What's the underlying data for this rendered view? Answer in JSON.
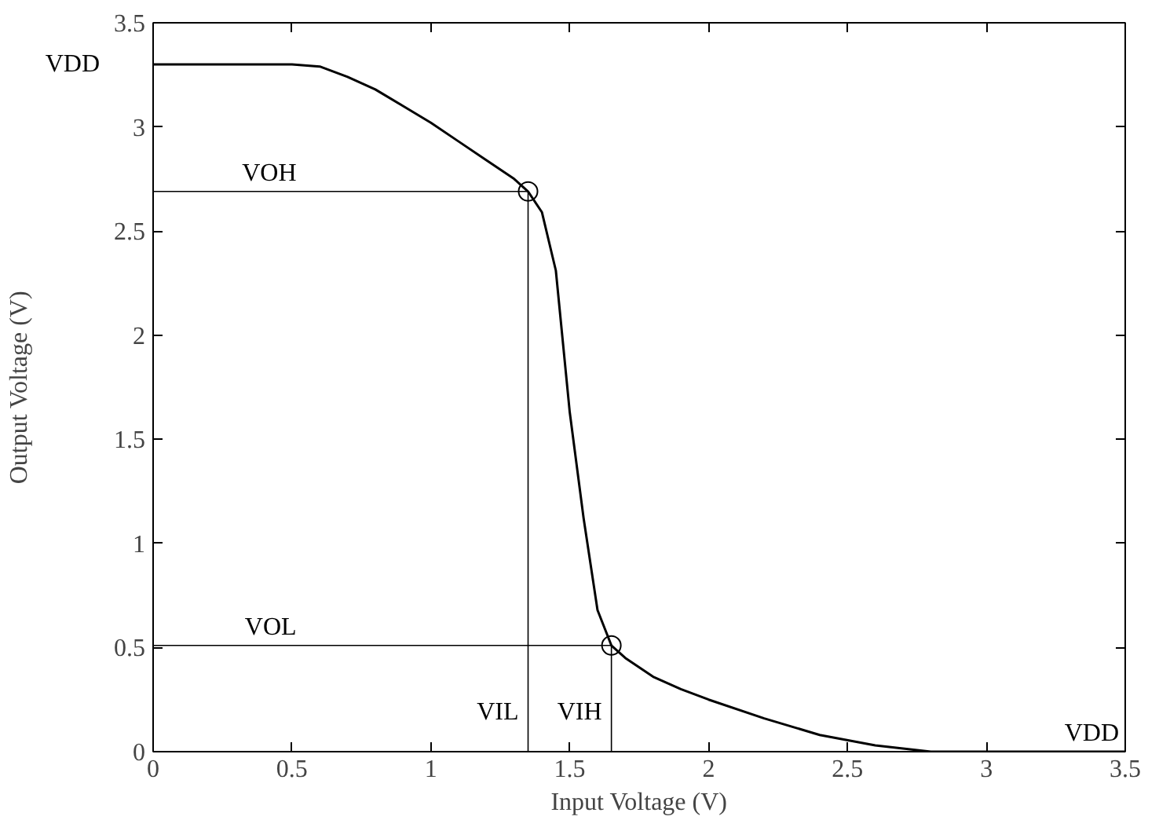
{
  "chart_data": {
    "type": "line",
    "xlabel": "Input Voltage (V)",
    "ylabel": "Output Voltage (V)",
    "xlim": [
      0,
      3.5
    ],
    "ylim": [
      0,
      3.5
    ],
    "xticks": [
      0,
      0.5,
      1,
      1.5,
      2,
      2.5,
      3,
      3.5
    ],
    "yticks": [
      0,
      0.5,
      1,
      1.5,
      2,
      2.5,
      3,
      3.5
    ],
    "grid": false,
    "series": [
      {
        "color": "#000000",
        "marker": "none",
        "x": [
          0,
          0.3,
          0.5,
          0.6,
          0.7,
          0.8,
          0.9,
          1.0,
          1.1,
          1.2,
          1.3,
          1.35,
          1.4,
          1.45,
          1.5,
          1.55,
          1.6,
          1.65,
          1.7,
          1.8,
          1.9,
          2.0,
          2.2,
          2.4,
          2.6,
          2.8,
          3.0,
          3.5
        ],
        "values": [
          3.3,
          3.3,
          3.3,
          3.29,
          3.24,
          3.18,
          3.1,
          3.02,
          2.93,
          2.84,
          2.75,
          2.69,
          2.59,
          2.31,
          1.63,
          1.12,
          0.68,
          0.51,
          0.45,
          0.36,
          0.3,
          0.25,
          0.16,
          0.08,
          0.03,
          0.0,
          0.0,
          0.0
        ]
      },
      {
        "color": "#000000",
        "marker": "none",
        "x": [
          0,
          1.35,
          1.35
        ],
        "values": [
          2.69,
          2.69,
          0
        ]
      },
      {
        "color": "#000000",
        "marker": "none",
        "x": [
          0,
          1.65,
          1.65
        ],
        "values": [
          0.51,
          0.51,
          0
        ]
      },
      {
        "type": "scatter",
        "color": "#000000",
        "marker": "circle",
        "x": [
          1.35,
          1.65
        ],
        "values": [
          2.69,
          0.51
        ]
      }
    ],
    "annotations": [
      "VDD",
      {
        "text": "VOH",
        "x": 0.55,
        "y": 2.69
      },
      {
        "text": "VOL",
        "x": 0.55,
        "y": 0.51
      },
      {
        "text": "VIL",
        "x": 1.35,
        "y": 0.1
      },
      {
        "text": "VIH",
        "x": 1.65,
        "y": 0.1
      },
      "VDD"
    ]
  }
}
